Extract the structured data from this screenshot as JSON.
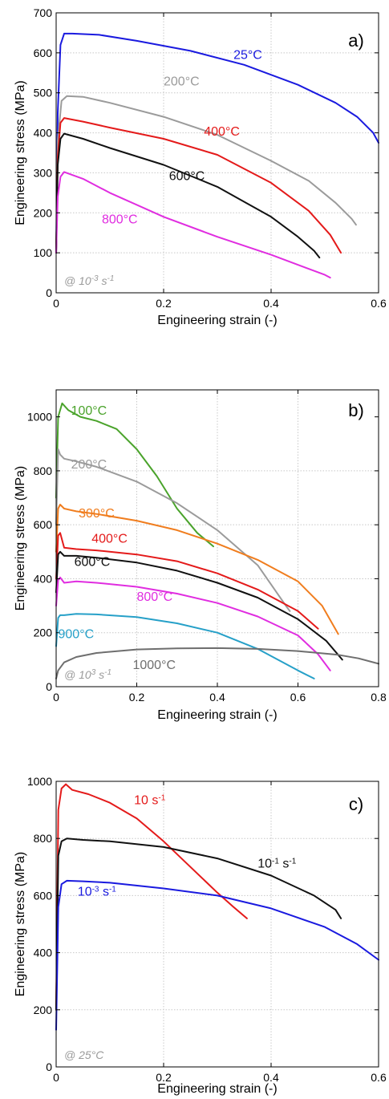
{
  "chart_data": [
    {
      "type": "line",
      "panel_label": "a)",
      "xlabel": "Engineering strain (-)",
      "ylabel": "Engineering stress (MPa)",
      "xlim": [
        0,
        0.6
      ],
      "ylim": [
        0,
        700
      ],
      "xticks": [
        0,
        0.2,
        0.4,
        0.6
      ],
      "yticks": [
        0,
        100,
        200,
        300,
        400,
        500,
        600,
        700
      ],
      "xtick_labels": [
        "0",
        "0.2",
        "0.4",
        "0.6"
      ],
      "ytick_labels": [
        "0",
        "100",
        "200",
        "300",
        "400",
        "500",
        "600",
        "700"
      ],
      "grid": true,
      "annotation": {
        "base": "@ 10",
        "sup": "-3",
        "mid": " s",
        "sup2": "-1"
      },
      "series": [
        {
          "name": "25°C",
          "color": "#1a1adf",
          "x": [
            0,
            0.003,
            0.008,
            0.015,
            0.03,
            0.08,
            0.15,
            0.25,
            0.35,
            0.45,
            0.52,
            0.56,
            0.59,
            0.6
          ],
          "y": [
            100,
            450,
            620,
            648,
            648,
            645,
            630,
            605,
            570,
            520,
            475,
            440,
            400,
            375
          ],
          "label_at": [
            0.33,
            585
          ]
        },
        {
          "name": "200°C",
          "color": "#9b9b9b",
          "x": [
            0,
            0.003,
            0.01,
            0.02,
            0.05,
            0.1,
            0.2,
            0.3,
            0.4,
            0.47,
            0.52,
            0.55,
            0.558
          ],
          "y": [
            100,
            380,
            480,
            492,
            490,
            475,
            440,
            395,
            330,
            280,
            225,
            185,
            170
          ],
          "label_at": [
            0.2,
            518
          ]
        },
        {
          "name": "400°C",
          "color": "#e41a1a",
          "x": [
            0,
            0.003,
            0.008,
            0.015,
            0.05,
            0.1,
            0.2,
            0.3,
            0.4,
            0.47,
            0.51,
            0.53
          ],
          "y": [
            100,
            340,
            425,
            437,
            428,
            413,
            385,
            345,
            275,
            205,
            145,
            100
          ],
          "label_at": [
            0.275,
            393
          ]
        },
        {
          "name": "600°C",
          "color": "#111111",
          "x": [
            0,
            0.003,
            0.008,
            0.015,
            0.05,
            0.1,
            0.2,
            0.3,
            0.4,
            0.45,
            0.48,
            0.49
          ],
          "y": [
            100,
            320,
            385,
            398,
            385,
            362,
            320,
            265,
            190,
            140,
            105,
            88
          ],
          "label_at": [
            0.21,
            282
          ]
        },
        {
          "name": "800°C",
          "color": "#e02de0",
          "x": [
            0,
            0.003,
            0.008,
            0.015,
            0.05,
            0.1,
            0.2,
            0.3,
            0.4,
            0.5,
            0.51
          ],
          "y": [
            100,
            240,
            290,
            302,
            285,
            250,
            190,
            140,
            95,
            45,
            38
          ],
          "label_at": [
            0.085,
            173
          ]
        }
      ]
    },
    {
      "type": "line",
      "panel_label": "b)",
      "xlabel": "Engineering strain (-)",
      "ylabel": "Engineering stress (MPa)",
      "xlim": [
        0,
        0.8
      ],
      "ylim": [
        0,
        1100
      ],
      "xticks": [
        0,
        0.2,
        0.4,
        0.6,
        0.8
      ],
      "yticks": [
        0,
        200,
        400,
        600,
        800,
        1000
      ],
      "xtick_labels": [
        "0",
        "0.2",
        "0.4",
        "0.6",
        "0.8"
      ],
      "ytick_labels": [
        "0",
        "200",
        "400",
        "600",
        "800",
        "1000"
      ],
      "grid": true,
      "annotation": {
        "base": "@ 10",
        "sup": "3",
        "mid": " s",
        "sup2": "-1"
      },
      "series": [
        {
          "name": "100°C",
          "color": "#4aa32b",
          "x": [
            0,
            0.005,
            0.015,
            0.03,
            0.06,
            0.1,
            0.15,
            0.2,
            0.25,
            0.3,
            0.35,
            0.39
          ],
          "y": [
            700,
            1000,
            1050,
            1025,
            1000,
            985,
            955,
            880,
            780,
            660,
            570,
            520
          ],
          "label_at": [
            0.037,
            1008
          ]
        },
        {
          "name": "200°C",
          "color": "#9b9b9b",
          "x": [
            0,
            0.005,
            0.01,
            0.02,
            0.05,
            0.1,
            0.2,
            0.3,
            0.4,
            0.5,
            0.57,
            0.58
          ],
          "y": [
            600,
            880,
            860,
            845,
            835,
            815,
            760,
            680,
            580,
            450,
            300,
            280
          ],
          "label_at": [
            0.037,
            808
          ]
        },
        {
          "name": "300°C",
          "color": "#f07d1e",
          "x": [
            0,
            0.005,
            0.01,
            0.02,
            0.05,
            0.1,
            0.2,
            0.3,
            0.4,
            0.5,
            0.6,
            0.66,
            0.7
          ],
          "y": [
            500,
            660,
            675,
            660,
            650,
            640,
            615,
            580,
            530,
            470,
            390,
            300,
            195
          ],
          "label_at": [
            0.056,
            627
          ]
        },
        {
          "name": "400°C",
          "color": "#e41a1a",
          "x": [
            0,
            0.005,
            0.01,
            0.02,
            0.05,
            0.1,
            0.2,
            0.3,
            0.4,
            0.5,
            0.6,
            0.65
          ],
          "y": [
            400,
            560,
            570,
            515,
            510,
            505,
            490,
            465,
            420,
            360,
            280,
            215
          ],
          "label_at": [
            0.088,
            534
          ]
        },
        {
          "name": "600°C",
          "color": "#111111",
          "x": [
            0,
            0.005,
            0.01,
            0.02,
            0.05,
            0.1,
            0.2,
            0.3,
            0.4,
            0.5,
            0.6,
            0.67,
            0.71
          ],
          "y": [
            350,
            490,
            500,
            485,
            485,
            478,
            460,
            430,
            385,
            330,
            250,
            170,
            100
          ],
          "label_at": [
            0.045,
            447
          ]
        },
        {
          "name": "800°C",
          "color": "#e02de0",
          "x": [
            0,
            0.005,
            0.01,
            0.02,
            0.05,
            0.1,
            0.2,
            0.3,
            0.4,
            0.5,
            0.6,
            0.65,
            0.68
          ],
          "y": [
            300,
            395,
            405,
            385,
            390,
            385,
            370,
            345,
            310,
            260,
            190,
            120,
            60
          ],
          "label_at": [
            0.2,
            318
          ]
        },
        {
          "name": "900°C",
          "color": "#26a0c8",
          "x": [
            0,
            0.005,
            0.01,
            0.02,
            0.05,
            0.1,
            0.2,
            0.3,
            0.4,
            0.5,
            0.6,
            0.64
          ],
          "y": [
            150,
            255,
            265,
            265,
            270,
            268,
            258,
            235,
            200,
            140,
            60,
            30
          ],
          "label_at": [
            0.005,
            180
          ]
        },
        {
          "name": "1000°C",
          "color": "#6e6e6e",
          "x": [
            0,
            0.005,
            0.02,
            0.05,
            0.1,
            0.2,
            0.3,
            0.4,
            0.5,
            0.6,
            0.7,
            0.75,
            0.8
          ],
          "y": [
            30,
            60,
            90,
            110,
            125,
            138,
            142,
            143,
            140,
            132,
            118,
            105,
            85
          ],
          "label_at": [
            0.19,
            65
          ]
        }
      ]
    },
    {
      "type": "line",
      "panel_label": "c)",
      "xlabel": "Engineering strain (-)",
      "ylabel": "Engineering stress (MPa)",
      "xlim": [
        0,
        0.6
      ],
      "ylim": [
        0,
        1000
      ],
      "xticks": [
        0,
        0.2,
        0.4,
        0.6
      ],
      "yticks": [
        0,
        200,
        400,
        600,
        800,
        1000
      ],
      "xtick_labels": [
        "0",
        "0.2",
        "0.4",
        "0.6"
      ],
      "ytick_labels": [
        "0",
        "200",
        "400",
        "600",
        "800",
        "1000"
      ],
      "grid": true,
      "annotation": {
        "base": "@ 25°C"
      },
      "series": [
        {
          "name": "10 s",
          "name_sup": "-1",
          "color": "#e41a1a",
          "x": [
            0,
            0.004,
            0.01,
            0.018,
            0.03,
            0.06,
            0.1,
            0.15,
            0.2,
            0.25,
            0.3,
            0.33,
            0.355
          ],
          "y": [
            200,
            900,
            975,
            990,
            970,
            955,
            925,
            870,
            790,
            700,
            610,
            560,
            520
          ],
          "label_at": [
            0.145,
            920
          ]
        },
        {
          "name": "10",
          "name_sup": "-1",
          "name_mid": " s",
          "name_sup2": "-1",
          "color": "#111111",
          "x": [
            0,
            0.004,
            0.01,
            0.02,
            0.05,
            0.1,
            0.2,
            0.3,
            0.4,
            0.48,
            0.52,
            0.53
          ],
          "y": [
            200,
            740,
            790,
            800,
            795,
            790,
            770,
            730,
            670,
            600,
            550,
            520
          ],
          "label_at": [
            0.375,
            698
          ]
        },
        {
          "name": "10",
          "name_sup": "-3",
          "name_mid": " s",
          "name_sup2": "-1",
          "color": "#1a1adf",
          "x": [
            0,
            0.004,
            0.01,
            0.02,
            0.05,
            0.1,
            0.2,
            0.3,
            0.4,
            0.5,
            0.56,
            0.6
          ],
          "y": [
            130,
            560,
            640,
            652,
            650,
            645,
            625,
            600,
            555,
            490,
            430,
            375
          ],
          "label_at": [
            0.04,
            600
          ]
        }
      ]
    }
  ]
}
